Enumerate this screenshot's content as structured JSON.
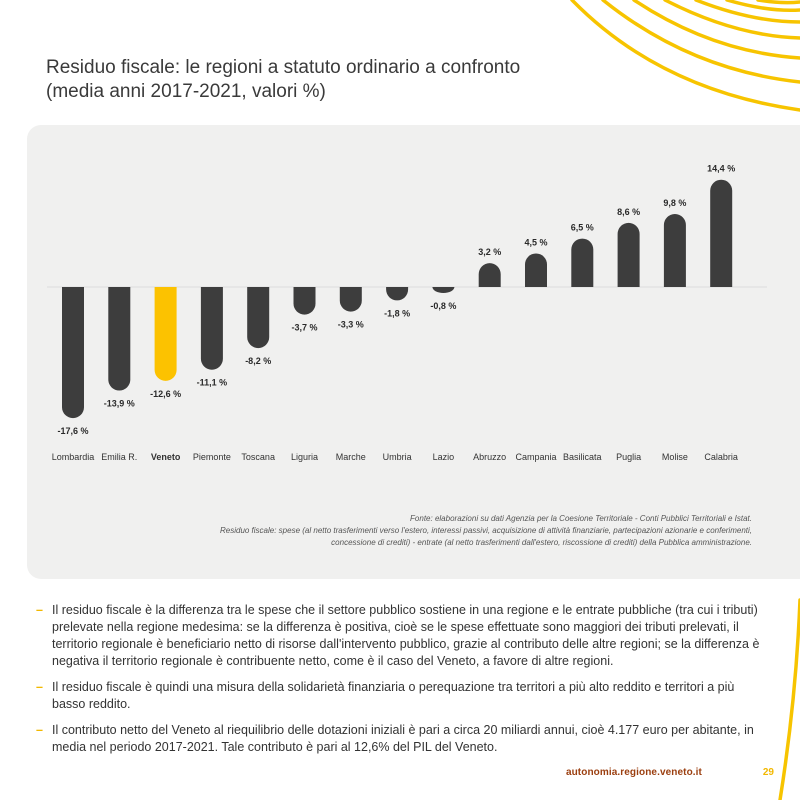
{
  "title_line1": "Residuo fiscale: le regioni a statuto ordinario a confronto",
  "title_line2": "(media anni 2017-2021, valori %)",
  "chart_data": {
    "type": "bar",
    "categories": [
      "Lombardia",
      "Emilia R.",
      "Veneto",
      "Piemonte",
      "Toscana",
      "Liguria",
      "Marche",
      "Umbria",
      "Lazio",
      "Abruzzo",
      "Campania",
      "Basilicata",
      "Puglia",
      "Molise",
      "Calabria"
    ],
    "values": [
      -17.6,
      -13.9,
      -12.6,
      -11.1,
      -8.2,
      -3.7,
      -3.3,
      -1.8,
      -0.8,
      3.2,
      4.5,
      6.5,
      8.6,
      9.8,
      14.4
    ],
    "value_labels": [
      "-17,6 %",
      "-13,9 %",
      "-12,6 %",
      "-11,1 %",
      "-8,2 %",
      "-3,7 %",
      "-3,3 %",
      "-1,8 %",
      "-0,8 %",
      "3,2 %",
      "4,5 %",
      "6,5 %",
      "8,6 %",
      "9,8 %",
      "14,4 %"
    ],
    "highlight": "Veneto",
    "ylim": [
      -17.6,
      14.4
    ],
    "bar_color": "#3d3d3d",
    "highlight_color": "#fcc200",
    "title": "",
    "xlabel": "",
    "ylabel": ""
  },
  "notes": {
    "source": "Fonte: elaborazioni su dati Agenzia per la Coesione Territoriale - Conti Pubblici Territoriali e Istat.",
    "definition_line1": "Residuo fiscale: spese (al netto trasferimenti verso l'estero, interessi passivi, acquisizione di attività finanziarie, partecipazioni azionarie e conferimenti,",
    "definition_line2": "concessione di crediti) - entrate (al netto trasferimenti dall'estero, riscossione di crediti) della Pubblica amministrazione."
  },
  "bullets": [
    {
      "dash": "–",
      "text": "Il residuo fiscale è la differenza tra le spese che il settore pubblico sostiene in una regione e le entrate pubbliche (tra cui i tributi) prelevate nella regione medesima: se la differenza è positiva, cioè se le spese effettuate sono maggiori dei tributi prelevati, il territorio regionale è beneficiario netto di risorse dall'intervento pubblico, grazie al contributo delle altre regioni; se la differenza è negativa il territorio regionale è contribuente netto, come è il caso del Veneto, a favore di altre regioni."
    },
    {
      "dash": "–",
      "text": "Il residuo fiscale è quindi una misura della solidarietà finanziaria o perequazione tra territori a più alto reddito e territori a più basso reddito."
    },
    {
      "dash": "–",
      "text": "Il contributo netto del Veneto al riequilibrio delle dotazioni iniziali è pari a circa 20 miliardi annui, cioè 4.177 euro per abitante, in media nel periodo 2017-2021. Tale contributo è pari al 12,6% del PIL del Veneto."
    }
  ],
  "footer": {
    "website": "autonomia.regione.veneto.it",
    "page_number": "29"
  },
  "colors": {
    "accent": "#f2b800",
    "footer_link": "#9b3f10"
  }
}
